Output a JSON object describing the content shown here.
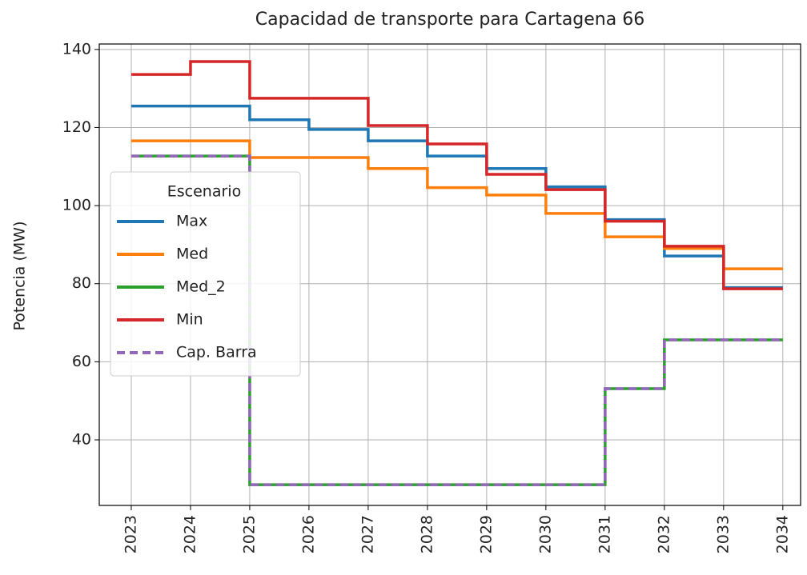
{
  "chart_data": {
    "type": "line",
    "drawstyle": "steps-post",
    "title": "Capacidad de transporte para Cartagena 66",
    "y_label": "Potencia (MW)",
    "x": [
      2023,
      2024,
      2025,
      2026,
      2027,
      2028,
      2029,
      2030,
      2031,
      2032,
      2033,
      2034
    ],
    "series": [
      {
        "name": "Max",
        "color": "#1f77b4",
        "linestyle": "solid",
        "values": [
          125.5,
          125.5,
          122,
          119.5,
          116.6,
          112.7,
          109.5,
          104.8,
          96.4,
          87.1,
          79,
          79
        ]
      },
      {
        "name": "Med",
        "color": "#ff7f0e",
        "linestyle": "solid",
        "values": [
          116.6,
          116.6,
          112.3,
          112.3,
          109.5,
          104.6,
          102.7,
          98,
          92,
          89,
          83.8,
          83.8
        ]
      },
      {
        "name": "Med_2",
        "color": "#2ca02c",
        "linestyle": "solid",
        "values": [
          112.7,
          112.7,
          28.5,
          28.5,
          28.5,
          28.5,
          28.5,
          28.5,
          53.1,
          65.6,
          65.6,
          65.6
        ]
      },
      {
        "name": "Min",
        "color": "#d62728",
        "linestyle": "solid",
        "values": [
          133.6,
          136.9,
          127.5,
          127.5,
          120.5,
          115.8,
          108,
          104.1,
          96,
          89.6,
          78.7,
          78.7
        ]
      },
      {
        "name": "Cap. Barra",
        "color": "#9467bd",
        "linestyle": "dashed",
        "values": [
          112.7,
          112.7,
          28.5,
          28.5,
          28.5,
          28.5,
          28.5,
          28.5,
          53.1,
          65.6,
          65.6,
          65.6
        ]
      }
    ],
    "xlim": [
      2022.46,
      2034.3
    ],
    "xticks": [
      2023,
      2024,
      2025,
      2026,
      2027,
      2028,
      2029,
      2030,
      2031,
      2032,
      2033,
      2034
    ],
    "ylim": [
      23.2,
      141.4
    ],
    "yticks": [
      40,
      60,
      80,
      100,
      120,
      140
    ],
    "grid": true,
    "legend_title": "Escenario",
    "legend": "center left"
  }
}
